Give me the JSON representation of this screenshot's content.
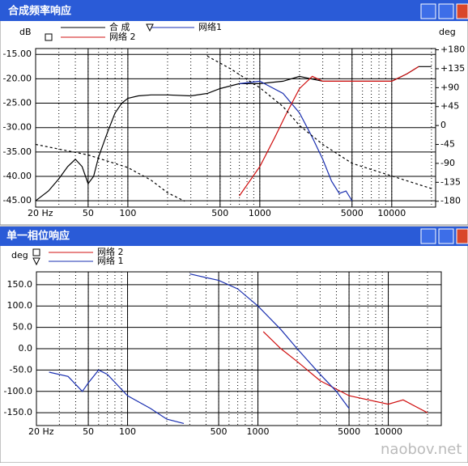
{
  "chart_data": [
    {
      "type": "line",
      "title": "合成频率响应",
      "log_x": true,
      "grid": true,
      "minor_grid": true,
      "xlim": [
        20,
        21500
      ],
      "xticks": [
        {
          "value": 20,
          "label": "20 Hz"
        },
        50,
        100,
        500,
        1000,
        5000,
        10000
      ],
      "ylim": [
        -46.3,
        -13.8
      ],
      "yticks": [
        {
          "value": -15,
          "label": "-15.00"
        },
        {
          "value": -20,
          "label": "-20.00"
        },
        {
          "value": -25,
          "label": "-25.00"
        },
        {
          "value": -30,
          "label": "-30.00"
        },
        {
          "value": -35,
          "label": "-35.00"
        },
        {
          "value": -40,
          "label": "-40.00"
        },
        {
          "value": -45,
          "label": "-45.00"
        }
      ],
      "y_label": "dB",
      "y2_label": "deg",
      "y2lim": [
        -194,
        183
      ],
      "y2ticks": [
        {
          "value": 180,
          "label": "+180"
        },
        {
          "value": 135,
          "label": "+135"
        },
        {
          "value": 90,
          "label": "+90"
        },
        {
          "value": 45,
          "label": "+45"
        },
        0,
        -45,
        -90,
        -135,
        -180
      ],
      "series": [
        {
          "name": "合 成",
          "color": "#000000",
          "x": [
            20,
            25,
            30,
            35,
            40,
            45,
            50,
            55,
            60,
            70,
            80,
            90,
            100,
            120,
            150,
            200,
            300,
            400,
            500,
            700,
            1000,
            1500,
            2000,
            3000,
            5000,
            7000,
            10000,
            13000,
            16000,
            20000
          ],
          "values": [
            -45,
            -43,
            -40.5,
            -38,
            -36.5,
            -38,
            -41.5,
            -40,
            -36,
            -31,
            -27,
            -25,
            -24,
            -23.5,
            -23.3,
            -23.3,
            -23.5,
            -23,
            -22,
            -21,
            -21,
            -20.5,
            -19.5,
            -20.5,
            -20.5,
            -20.5,
            -20.5,
            -19,
            -17.5,
            -17.5
          ]
        },
        {
          "name": "网络1",
          "color": "#1a2fb0",
          "x": [
            700,
            1000,
            1500,
            2000,
            2500,
            3000,
            3500,
            4000,
            4500,
            5000
          ],
          "values": [
            -21,
            -20.5,
            -23,
            -27,
            -32,
            -36.5,
            -41,
            -43.5,
            -43,
            -45
          ]
        },
        {
          "name": "网络 2",
          "color": "#d01010",
          "x": [
            700,
            1000,
            1300,
            1600,
            2000,
            2500,
            3000,
            5000,
            10000,
            13000,
            16000
          ],
          "values": [
            -44,
            -38,
            -32,
            -27,
            -22,
            -19.5,
            -20.5,
            -20.5,
            -20.5,
            -19,
            -17.5
          ]
        },
        {
          "color": "#000000",
          "dash": true,
          "axis": "y2",
          "x": [
            20,
            50,
            100,
            150,
            200,
            270,
            280,
            400,
            600,
            1000,
            1500,
            2000,
            3000,
            5000,
            10000,
            20000
          ],
          "values": [
            -45,
            -70,
            -100,
            -130,
            -160,
            -180,
            null,
            165,
            135,
            90,
            45,
            0,
            -45,
            -90,
            -120,
            -150
          ]
        }
      ]
    },
    {
      "type": "line",
      "title": "单一相位响应",
      "log_x": true,
      "grid": true,
      "minor_grid": true,
      "xlim": [
        20,
        25500
      ],
      "xticks": [
        {
          "value": 20,
          "label": "20 Hz"
        },
        50,
        100,
        500,
        1000,
        5000,
        10000
      ],
      "ylim": [
        -180,
        180
      ],
      "y_label": "deg",
      "yticks": [
        {
          "value": 150,
          "label": "150.0"
        },
        {
          "value": 100,
          "label": "100.0"
        },
        {
          "value": 50,
          "label": "50.0"
        },
        {
          "value": 0,
          "label": "0.0"
        },
        {
          "value": -50,
          "label": "-50.0"
        },
        {
          "value": -100,
          "label": "-100.0"
        },
        {
          "value": -150,
          "label": "-150.0"
        }
      ],
      "series": [
        {
          "name": "网络 2",
          "color": "#d01010",
          "x": [
            1100,
            1500,
            2000,
            3000,
            5000,
            10000,
            13000,
            20000
          ],
          "values": [
            40,
            0,
            -30,
            -75,
            -110,
            -130,
            -120,
            -150
          ]
        },
        {
          "name": "网络 1",
          "color": "#1a2fb0",
          "x": [
            25,
            35,
            45,
            50,
            60,
            70,
            100,
            150,
            200,
            270,
            290,
            300,
            500,
            700,
            1000,
            1500,
            2000,
            3000,
            4000,
            5000
          ],
          "values": [
            -55,
            -65,
            -100,
            -80,
            -50,
            -60,
            -110,
            -140,
            -165,
            -175,
            null,
            175,
            160,
            140,
            100,
            45,
            0,
            -60,
            -100,
            -140
          ]
        }
      ]
    }
  ],
  "watermark": "naobov.net"
}
